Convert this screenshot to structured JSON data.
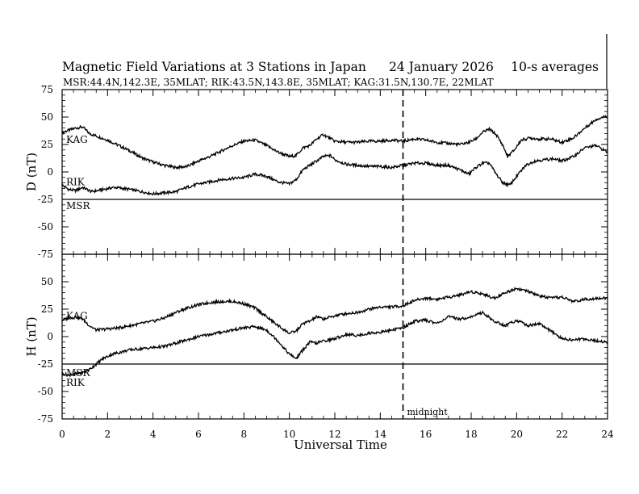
{
  "chart_data": {
    "type": "line",
    "title": "Magnetic Field Variations at 3 Stations in Japan",
    "date": "24 January  2026",
    "averaging": "10-s averages",
    "stations_info": "MSR:44.4N,142.3E, 35MLAT;  RIK:43.5N,143.8E, 35MLAT;  KAG:31.5N,130.7E, 22MLAT",
    "xlabel": "Universal Time",
    "xlim": [
      0,
      24
    ],
    "x_ticks": [
      "0",
      "2",
      "4",
      "6",
      "8",
      "10",
      "12",
      "14",
      "16",
      "18",
      "20",
      "22",
      "24"
    ],
    "midnight_ut": 15,
    "midnight_label": "midnight",
    "panels": [
      {
        "ylabel": "D (nT)",
        "ylim": [
          -75,
          75
        ],
        "y_ticks": [
          "75",
          "50",
          "25",
          "0",
          "-25",
          "-50",
          "-75"
        ],
        "series": [
          {
            "name": "KAG",
            "x": [
              0,
              0.3,
              0.6,
              0.9,
              1.2,
              1.6,
              2,
              2.5,
              3,
              3.5,
              4,
              4.5,
              5,
              5.5,
              6,
              6.5,
              7,
              7.5,
              8,
              8.5,
              9,
              9.5,
              10,
              10.3,
              10.6,
              10.9,
              11.2,
              11.5,
              12,
              12.5,
              13,
              13.5,
              14,
              14.5,
              15,
              15.5,
              16,
              16.5,
              17,
              17.5,
              17.9,
              18.2,
              18.5,
              18.8,
              19.1,
              19.4,
              19.6,
              19.9,
              20.2,
              20.6,
              21,
              21.5,
              22,
              22.5,
              23,
              23.5,
              24
            ],
            "y": [
              36,
              38,
              40,
              41,
              35,
              32,
              29,
              24,
              19,
              13,
              9,
              6,
              4,
              5,
              10,
              14,
              19,
              24,
              28,
              29,
              24,
              18,
              14,
              15,
              22,
              24,
              30,
              34,
              28,
              27,
              27,
              28,
              28,
              29,
              28,
              30,
              29,
              27,
              26,
              25,
              27,
              30,
              36,
              39,
              34,
              24,
              14,
              20,
              29,
              31,
              30,
              30,
              27,
              31,
              40,
              48,
              51
            ]
          },
          {
            "name": "RIK",
            "x": [
              0,
              0.3,
              0.6,
              0.9,
              1.3,
              1.8,
              2.3,
              3,
              3.5,
              4,
              4.5,
              5,
              5.5,
              6,
              6.5,
              7,
              7.5,
              8,
              8.5,
              9,
              9.5,
              10,
              10.3,
              10.6,
              10.9,
              11.2,
              11.5,
              11.8,
              12,
              12.5,
              13,
              13.5,
              14,
              14.5,
              15,
              15.5,
              16,
              16.5,
              17,
              17.5,
              17.9,
              18.2,
              18.5,
              18.8,
              19.1,
              19.4,
              19.7,
              20,
              20.4,
              20.8,
              21.2,
              21.6,
              22,
              22.5,
              23,
              23.5,
              24
            ],
            "y": [
              -12,
              -16,
              -17,
              -14,
              -18,
              -16,
              -14,
              -16,
              -18,
              -20,
              -19,
              -18,
              -14,
              -11,
              -9,
              -7,
              -6,
              -5,
              -2,
              -4,
              -9,
              -11,
              -7,
              2,
              6,
              10,
              14,
              15,
              11,
              7,
              6,
              5,
              5,
              4,
              6,
              8,
              8,
              6,
              6,
              2,
              -2,
              4,
              8,
              8,
              -2,
              -10,
              -12,
              -4,
              6,
              10,
              11,
              12,
              10,
              14,
              22,
              24,
              18
            ]
          },
          {
            "name": "MSR",
            "x": [
              0,
              24
            ],
            "y": [
              -25,
              -25
            ]
          }
        ]
      },
      {
        "ylabel": "H (nT)",
        "ylim": [
          -75,
          75
        ],
        "y_ticks": [
          "75",
          "50",
          "25",
          "0",
          "-25",
          "-50",
          "-75"
        ],
        "series": [
          {
            "name": "KAG",
            "x": [
              0,
              0.3,
              0.6,
              0.9,
              1.2,
              1.5,
              2,
              2.5,
              3,
              3.5,
              4,
              4.5,
              5,
              5.5,
              6,
              6.5,
              7,
              7.5,
              8,
              8.5,
              9,
              9.5,
              10,
              10.3,
              10.6,
              10.9,
              11.2,
              11.5,
              12,
              12.5,
              13,
              13.5,
              14,
              14.5,
              15,
              15.5,
              16,
              16.5,
              17,
              17.5,
              18,
              18.5,
              19,
              19.5,
              20,
              20.5,
              21,
              21.5,
              22,
              22.5,
              23,
              23.5,
              24
            ],
            "y": [
              15,
              17,
              18,
              16,
              10,
              6,
              7,
              8,
              10,
              12,
              14,
              17,
              22,
              26,
              29,
              31,
              32,
              32,
              30,
              26,
              18,
              10,
              3,
              5,
              12,
              14,
              18,
              16,
              19,
              21,
              22,
              25,
              27,
              27,
              28,
              33,
              35,
              34,
              36,
              38,
              41,
              39,
              35,
              40,
              44,
              41,
              37,
              35,
              36,
              32,
              34,
              35,
              35
            ]
          },
          {
            "name": "RIK",
            "x": [
              0,
              0.3,
              0.6,
              0.9,
              1.2,
              1.5,
              1.8,
              2.2,
              2.6,
              3,
              3.5,
              4,
              4.5,
              5,
              5.5,
              6,
              6.5,
              7,
              7.5,
              8,
              8.5,
              9,
              9.5,
              10,
              10.3,
              10.6,
              10.9,
              11.2,
              11.5,
              12,
              12.5,
              13,
              13.5,
              14,
              14.5,
              15,
              15.5,
              16,
              16.5,
              17,
              17.5,
              18,
              18.5,
              19,
              19.5,
              20,
              20.5,
              21,
              21.5,
              22,
              22.5,
              23,
              23.5,
              24
            ],
            "y": [
              -34,
              -35,
              -34,
              -33,
              -30,
              -25,
              -20,
              -16,
              -14,
              -12,
              -11,
              -10,
              -9,
              -6,
              -3,
              0,
              2,
              4,
              6,
              8,
              9,
              6,
              -4,
              -16,
              -20,
              -12,
              -5,
              -6,
              -4,
              -2,
              2,
              1,
              3,
              4,
              6,
              8,
              14,
              15,
              12,
              18,
              16,
              18,
              22,
              14,
              10,
              15,
              10,
              12,
              5,
              -2,
              -3,
              -2,
              -4,
              -5
            ]
          },
          {
            "name": "MSR",
            "x": [
              0,
              24
            ],
            "y": [
              -25,
              -25
            ]
          }
        ]
      }
    ]
  }
}
